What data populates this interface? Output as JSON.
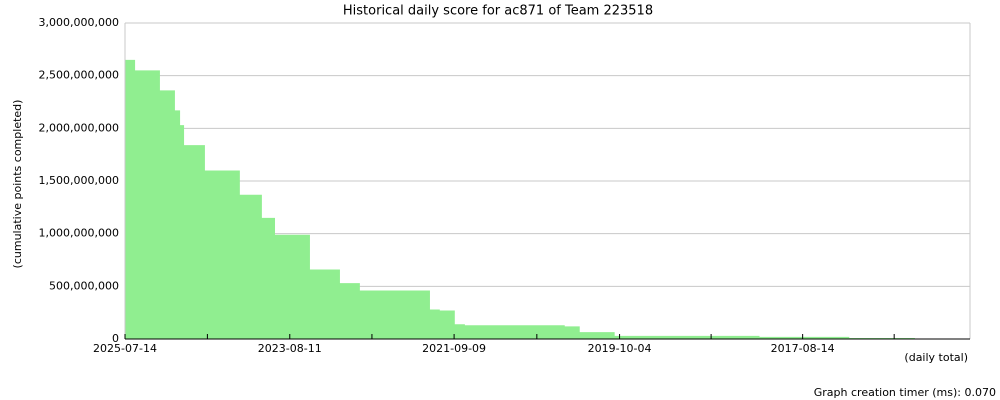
{
  "chart_data": {
    "type": "area",
    "title": "Historical daily score for ac871 of Team 223518",
    "y_label": "(cumulative points completed)",
    "x_label": "(daily total)",
    "footer": "Graph creation timer (ms): 0.070",
    "color": "#90ee90",
    "grid": true,
    "x": [
      "2025-07-14",
      "2025-06-01",
      "2025-04-20",
      "2025-02-15",
      "2024-12-13",
      "2024-11-21",
      "2024-11-04",
      "2024-08-07",
      "2024-06-25",
      "2024-03-11",
      "2023-12-08",
      "2023-11-12",
      "2023-10-13",
      "2023-05-17",
      "2023-01-09",
      "2022-10-16",
      "2022-04-07",
      "2021-12-21",
      "2021-11-09",
      "2021-09-06",
      "2021-07-25",
      "2020-10-21",
      "2020-05-25",
      "2020-03-22",
      "2019-10-25",
      "2018-02-14",
      "2017-01-27",
      "2016-04-22"
    ],
    "values": [
      2650000000,
      2550000000,
      2550000000,
      2360000000,
      2170000000,
      2030000000,
      1840000000,
      1600000000,
      1600000000,
      1370000000,
      1150000000,
      1150000000,
      990000000,
      660000000,
      530000000,
      460000000,
      460000000,
      280000000,
      270000000,
      140000000,
      130000000,
      130000000,
      120000000,
      65000000,
      30000000,
      20000000,
      10000000,
      0
    ],
    "xlim": [
      "2025-07-14",
      "2015-08-31"
    ],
    "xticks": [
      "2025-07-14",
      "2023-08-11",
      "2021-09-09",
      "2019-10-04",
      "2017-08-14"
    ],
    "ylim": [
      0,
      3000000000
    ],
    "yticks": [
      0,
      {
        "value": 500000000,
        "label": "500,000,000"
      },
      {
        "value": 1000000000,
        "label": "1,000,000,000"
      },
      {
        "value": 1500000000,
        "label": "1,500,000,000"
      },
      {
        "value": 2000000000,
        "label": "2,000,000,000"
      },
      {
        "value": 2500000000,
        "label": "2,500,000,000"
      },
      {
        "value": 3000000000,
        "label": "3,000,000,000"
      }
    ]
  }
}
